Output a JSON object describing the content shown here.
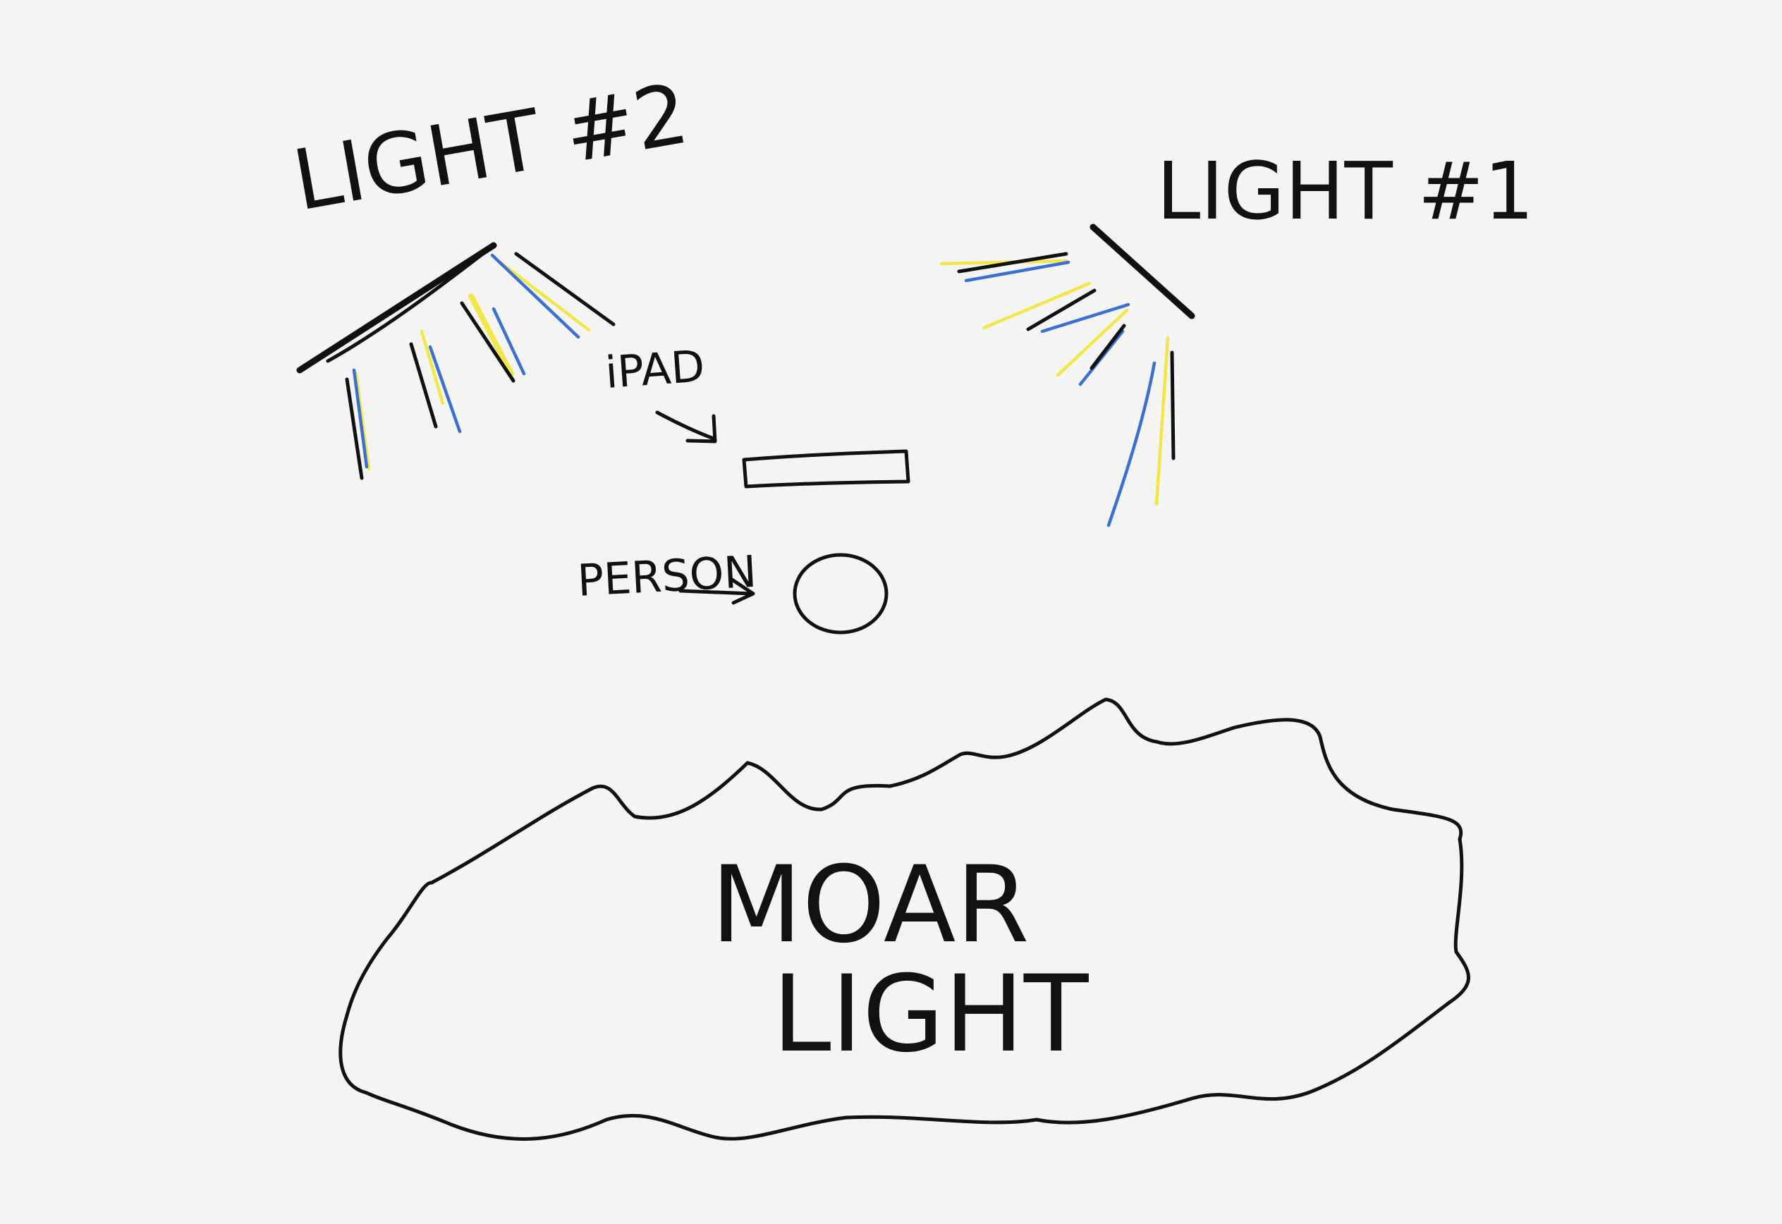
{
  "labels": {
    "light2": "LIGHT #2",
    "light1": "LIGHT #1",
    "ipad": "iPAD",
    "person": "PERSON",
    "moar_line1": "MOAR",
    "moar_line2": "LIGHT"
  },
  "colors": {
    "background": "#f4f4f2",
    "ink": "#111111",
    "blue_ray": "#3b6fd0",
    "yellow_ray": "#f2e64a"
  },
  "icons": {
    "arrow": "hand-drawn-arrow",
    "light": "light-source-bar",
    "person": "circle",
    "ipad": "rectangle",
    "cloud": "cloud-outline"
  }
}
